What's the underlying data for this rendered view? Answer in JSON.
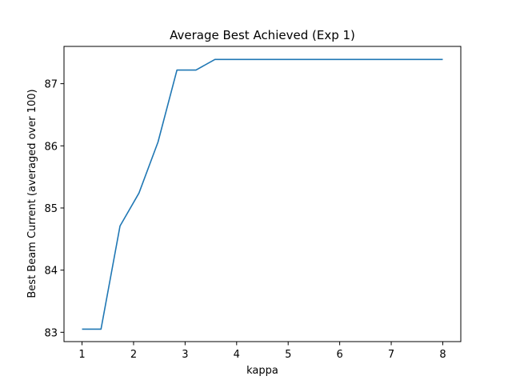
{
  "chart_data": {
    "type": "line",
    "title": "Average Best Achieved (Exp 1)",
    "xlabel": "kappa",
    "ylabel": "Best Beam Current (averaged over 100)",
    "xlim": [
      0.65,
      8.35
    ],
    "ylim": [
      82.85,
      87.6
    ],
    "xticks": [
      1,
      2,
      3,
      4,
      5,
      6,
      7,
      8
    ],
    "yticks": [
      83,
      84,
      85,
      86,
      87
    ],
    "grid": false,
    "legend": "none",
    "series": [
      {
        "color": "#1f77b4",
        "x": [
          1.0,
          1.368,
          1.737,
          2.105,
          2.474,
          2.842,
          3.211,
          3.579,
          3.947,
          4.316,
          4.684,
          5.053,
          5.421,
          5.789,
          6.158,
          6.526,
          6.895,
          7.263,
          7.632,
          8.0
        ],
        "y": [
          83.05,
          83.05,
          84.71,
          85.24,
          86.06,
          87.22,
          87.22,
          87.39,
          87.39,
          87.39,
          87.39,
          87.39,
          87.39,
          87.39,
          87.39,
          87.39,
          87.39,
          87.39,
          87.39,
          87.39
        ]
      }
    ]
  }
}
